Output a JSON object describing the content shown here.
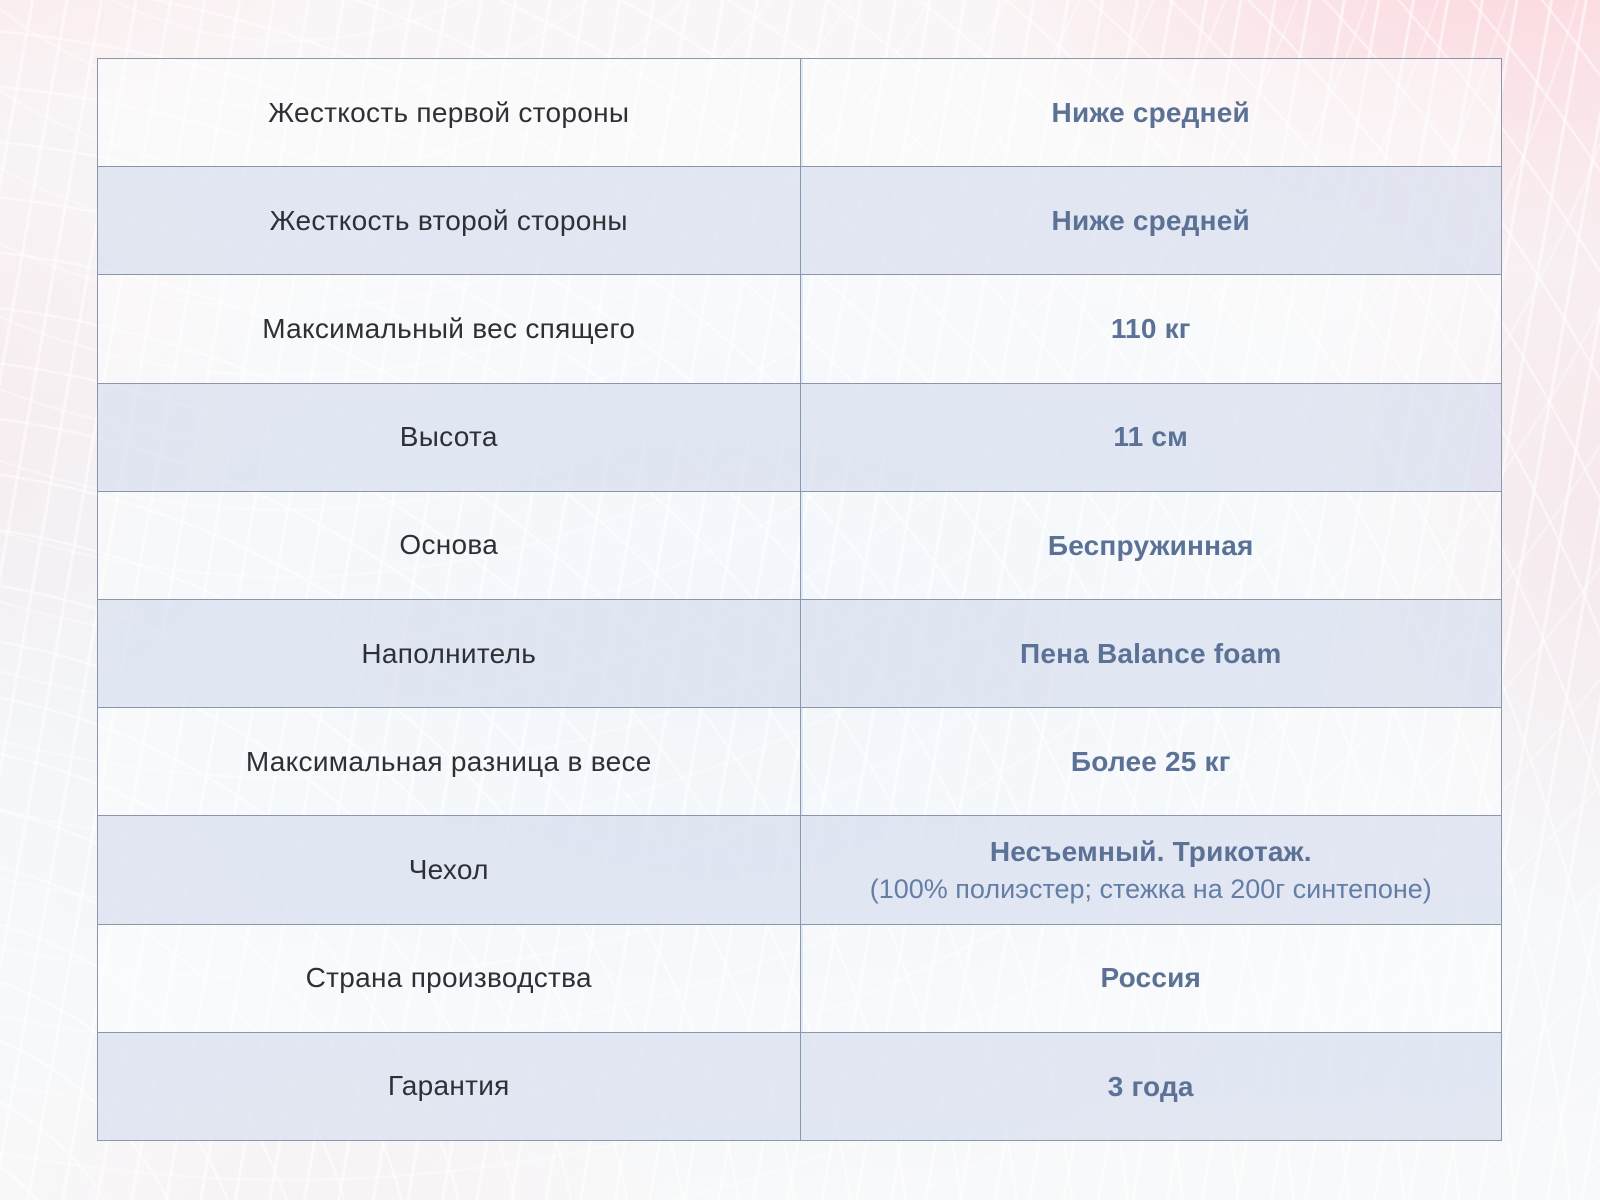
{
  "palette": {
    "value_accent": "#5b7296",
    "label_text": "#2f3036",
    "table_border": "#8c96ab",
    "row_alt_fill": "#e3e7ef",
    "bg_pink": "#fcd1d8",
    "bg_blue": "#e6ecf5"
  },
  "table": {
    "rows": [
      {
        "label": "Жесткость первой стороны",
        "value": "Ниже средней"
      },
      {
        "label": "Жесткость второй стороны",
        "value": "Ниже средней"
      },
      {
        "label": "Максимальный вес спящего",
        "value": "110 кг"
      },
      {
        "label": "Высота",
        "value": "11 см"
      },
      {
        "label": "Основа",
        "value": "Беспружинная"
      },
      {
        "label": "Наполнитель",
        "value": "Пена Balance foam"
      },
      {
        "label": "Максимальная разница в весе",
        "value": "Более 25 кг"
      },
      {
        "label": "Чехол",
        "value": "Несъемный. Трикотаж.",
        "value_note": "(100% полиэстер; стежка на 200г синтепоне)"
      },
      {
        "label": "Страна производства",
        "value": "Россия"
      },
      {
        "label": "Гарантия",
        "value": "3 года"
      }
    ]
  }
}
